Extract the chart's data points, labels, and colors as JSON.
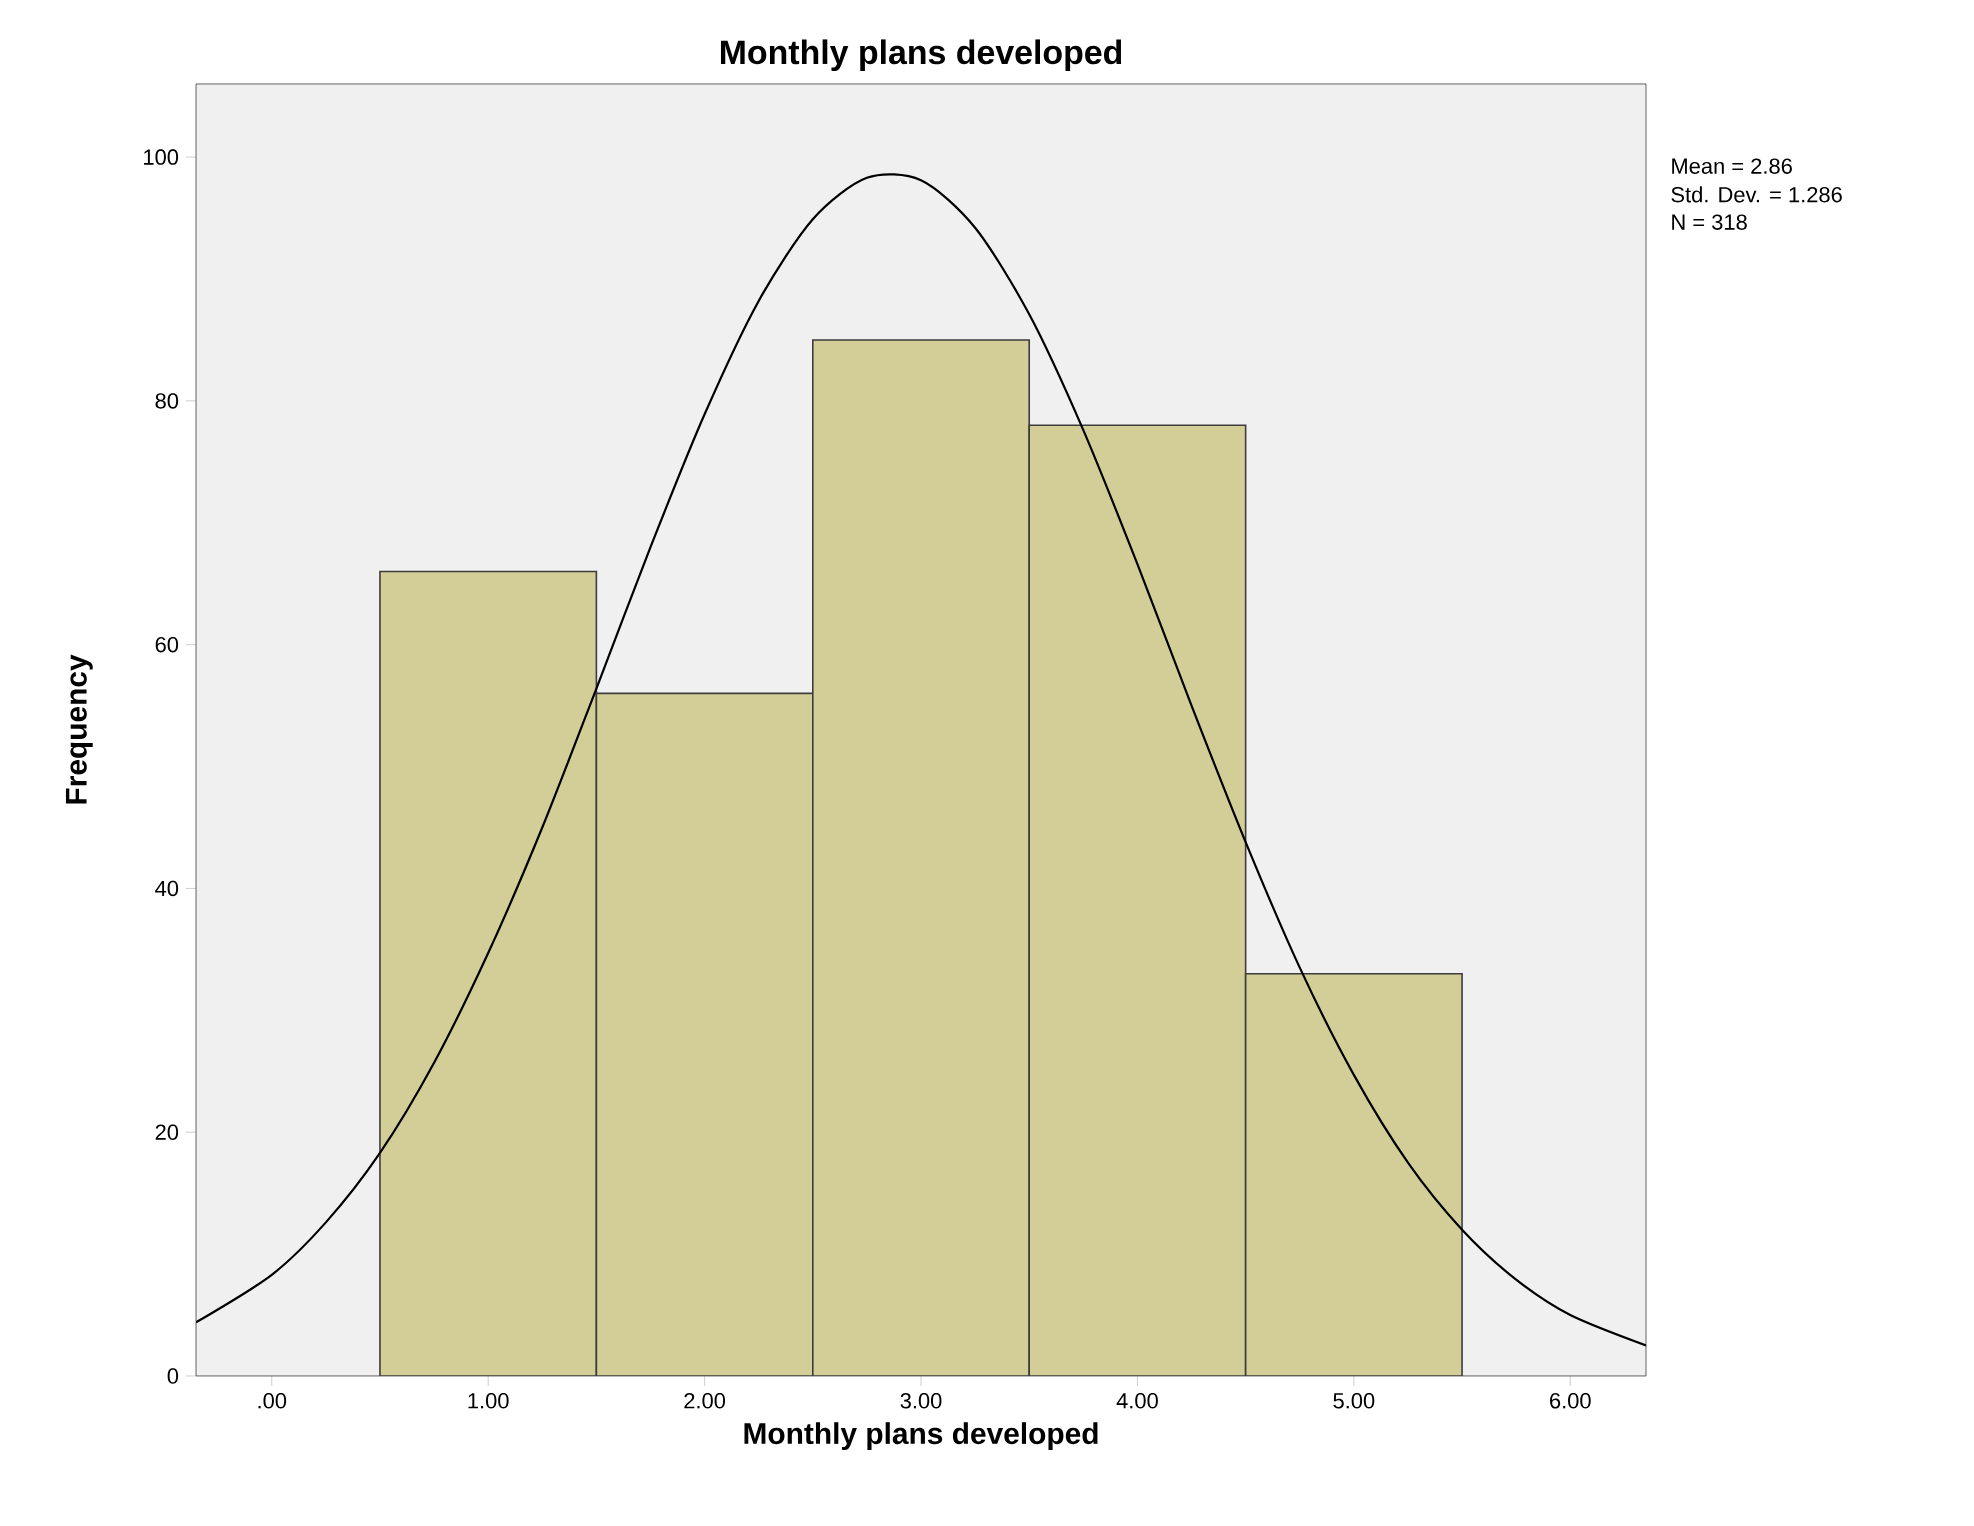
{
  "chart_data": {
    "type": "histogram",
    "title": "Monthly plans developed",
    "xlabel": "Monthly plans developed",
    "ylabel": "Frequency",
    "series": [
      {
        "type": "histogram",
        "bins": [
          0.5,
          1.5,
          2.5,
          3.5,
          4.5,
          5.5
        ],
        "values": [
          66,
          56,
          85,
          78,
          33
        ],
        "color": "#d3ce98"
      },
      {
        "type": "line",
        "x": [
          -0.35,
          0,
          0.25,
          0.5,
          0.75,
          1.0,
          1.25,
          1.5,
          1.75,
          2.0,
          2.25,
          2.5,
          2.75,
          3.0,
          3.25,
          3.5,
          3.75,
          4.0,
          4.25,
          4.5,
          4.75,
          5.0,
          5.25,
          5.5,
          5.75,
          6.0,
          6.35
        ],
        "values": [
          4.4,
          8.3,
          12.6,
          18.3,
          25.7,
          34.7,
          45.0,
          56.4,
          68.0,
          78.9,
          88.2,
          94.9,
          98.3,
          98.1,
          94.2,
          87.1,
          77.6,
          66.6,
          55.0,
          43.8,
          33.5,
          24.7,
          17.5,
          12.0,
          7.9,
          5.0,
          2.5
        ],
        "color": "#000000"
      }
    ],
    "xlim": [
      -0.35,
      6.35
    ],
    "ylim": [
      0,
      106
    ],
    "xticks": [
      {
        "value": 0,
        "label": ".00"
      },
      {
        "value": 1,
        "label": "1.00"
      },
      {
        "value": 2,
        "label": "2.00"
      },
      {
        "value": 3,
        "label": "3.00"
      },
      {
        "value": 4,
        "label": "4.00"
      },
      {
        "value": 5,
        "label": "5.00"
      },
      {
        "value": 6,
        "label": "6.00"
      }
    ],
    "yticks": [
      0,
      20,
      40,
      60,
      80,
      100
    ],
    "annotations": [
      "Mean = 2.86",
      "Std. Dev. = 1.286",
      "N = 318"
    ]
  }
}
